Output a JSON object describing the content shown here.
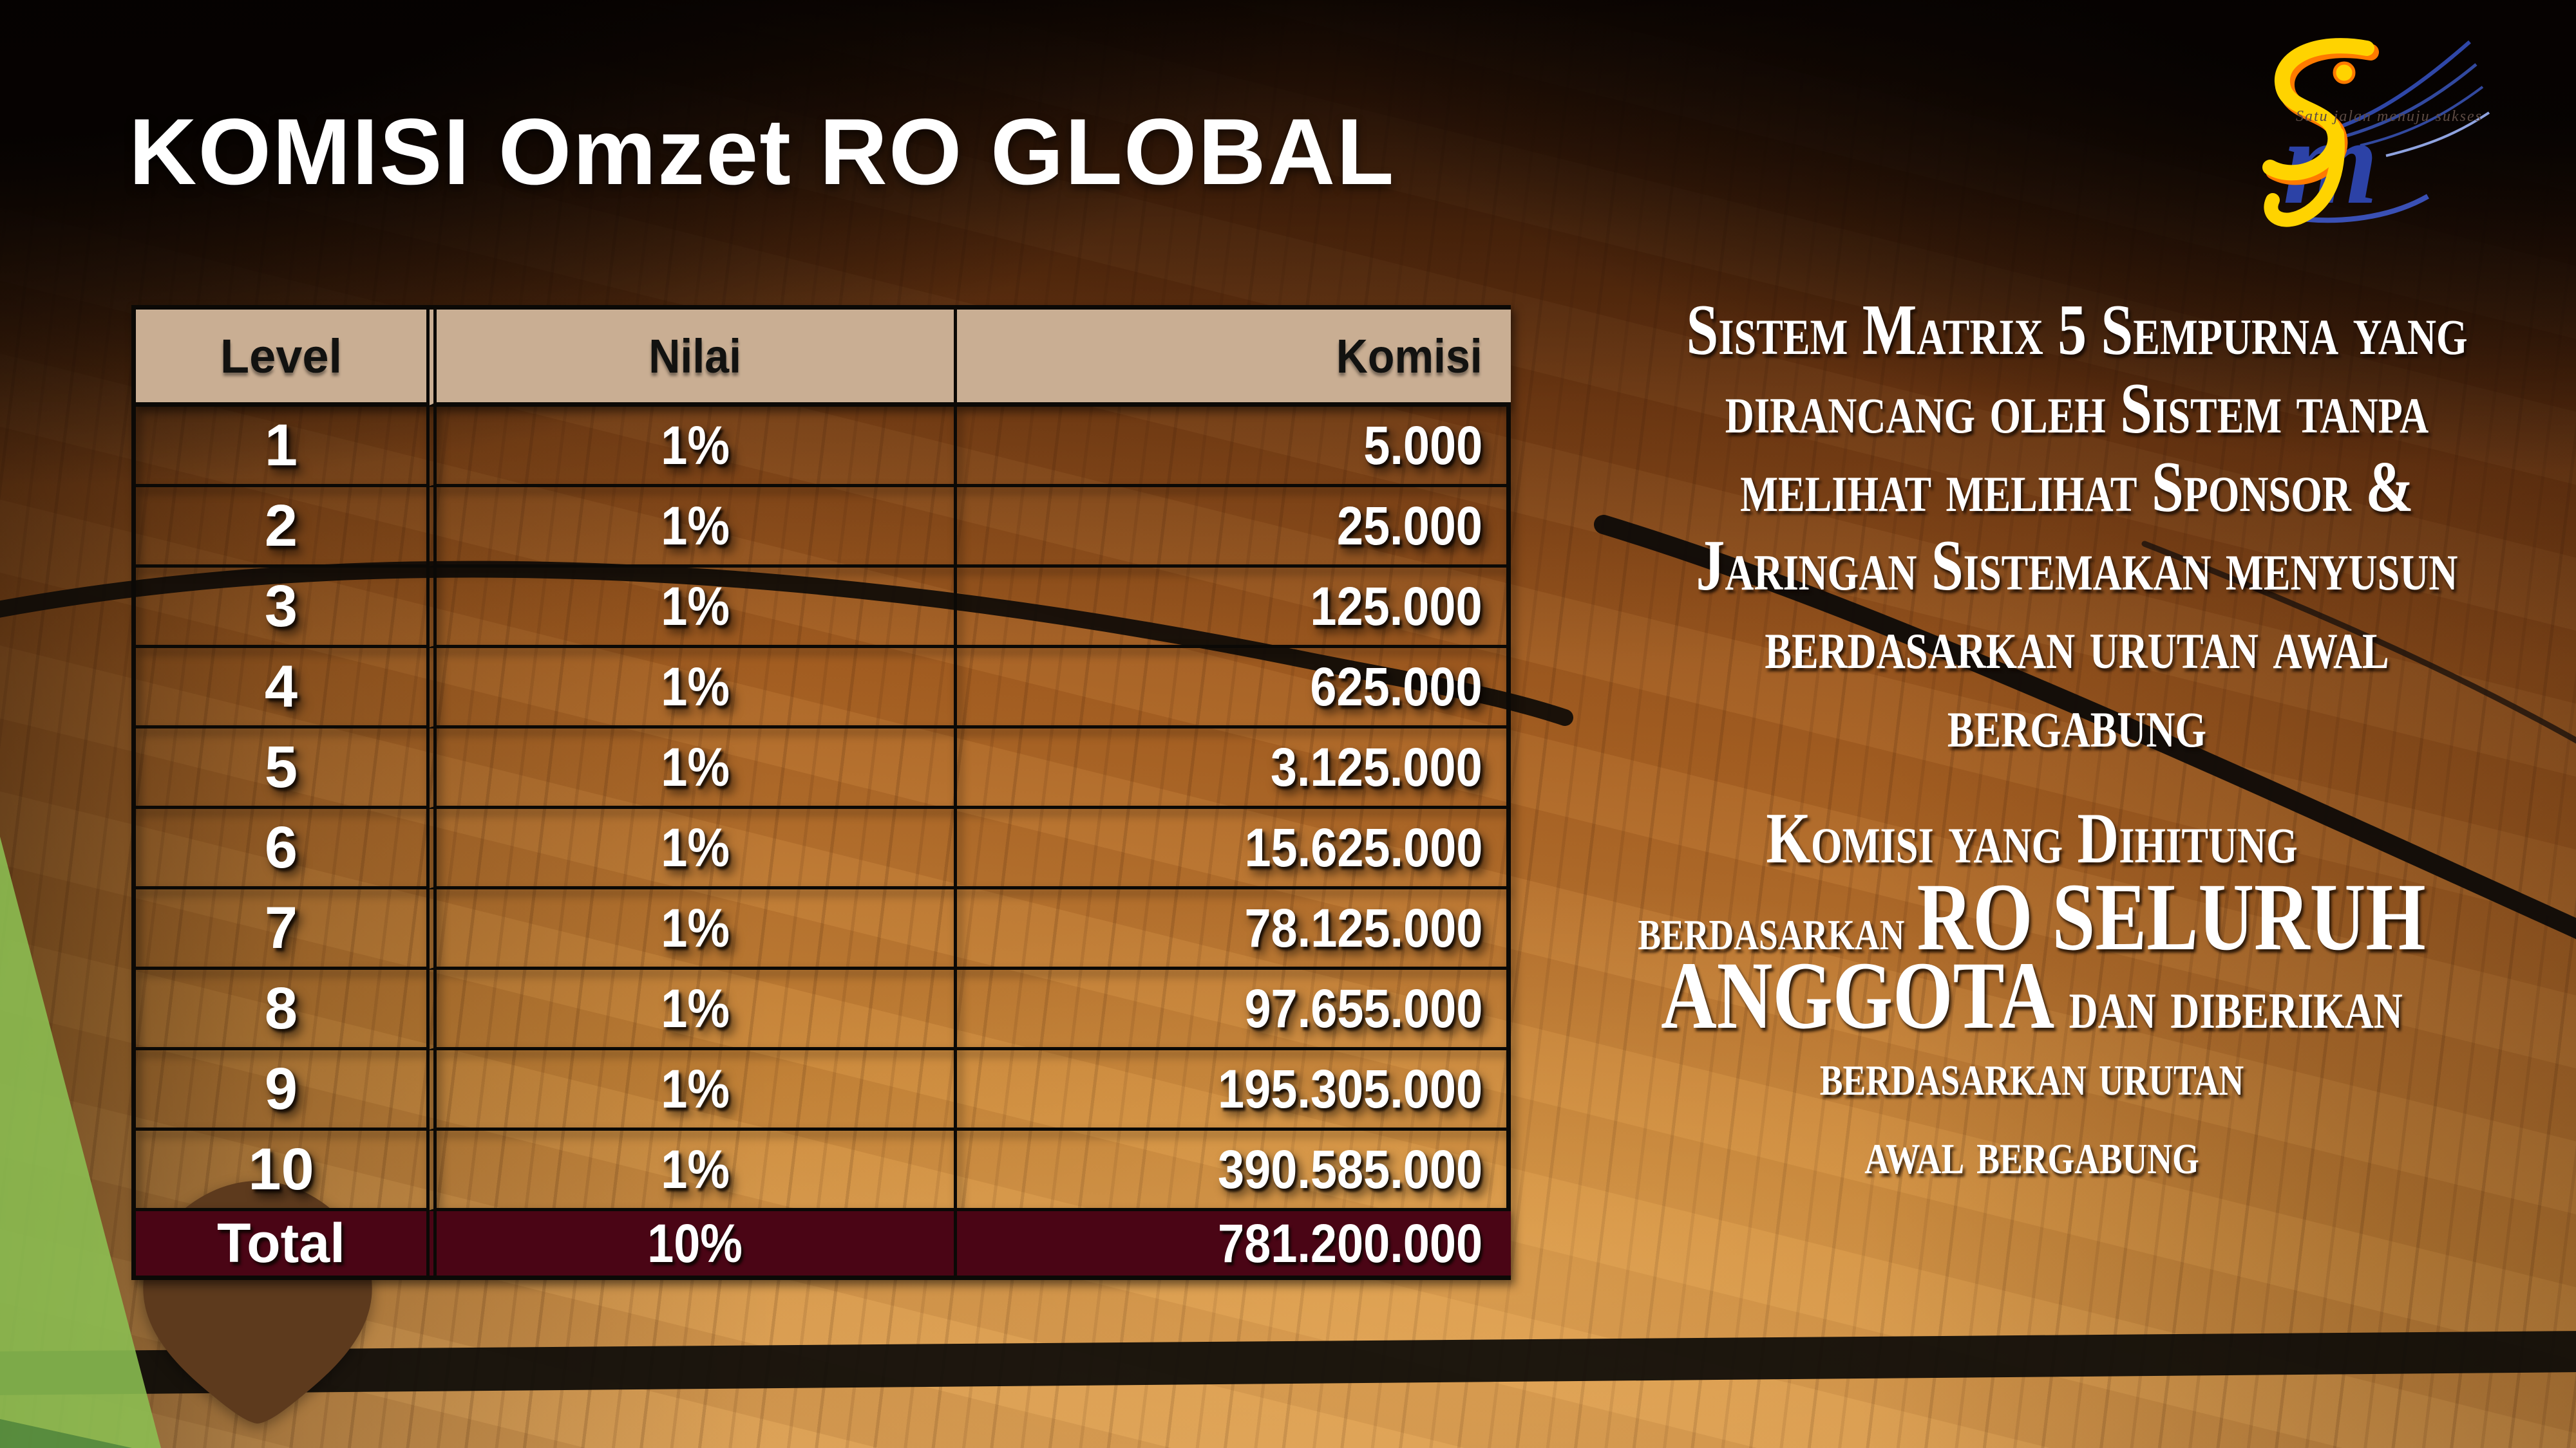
{
  "slide": {
    "title": "KOMISI Omzet RO GLOBAL"
  },
  "logo": {
    "monogram_letters": "SJM",
    "tagline": "Satu jalan menuju sukses"
  },
  "table": {
    "headers": [
      "Level",
      "Nilai",
      "Komisi"
    ],
    "rows": [
      [
        "1",
        "1%",
        "5.000"
      ],
      [
        "2",
        "1%",
        "25.000"
      ],
      [
        "3",
        "1%",
        "125.000"
      ],
      [
        "4",
        "1%",
        "625.000"
      ],
      [
        "5",
        "1%",
        "3.125.000"
      ],
      [
        "6",
        "1%",
        "15.625.000"
      ],
      [
        "7",
        "1%",
        "78.125.000"
      ],
      [
        "8",
        "1%",
        "97.655.000"
      ],
      [
        "9",
        "1%",
        "195.305.000"
      ],
      [
        "10",
        "1%",
        "390.585.000"
      ]
    ],
    "total_row": [
      "Total",
      "10%",
      "781.200.000"
    ]
  },
  "panels": {
    "matrix_note": {
      "lines": [
        "Sistem Matrix 5 Sempurna yang",
        "dirancang oleh Sistem tanpa",
        "melihat melihat Sponsor &",
        "Jaringan Sistemakan menyusun",
        "berdasarkan urutan awal",
        "bergabung"
      ]
    },
    "komisi_note": {
      "lines": [
        [
          {
            "t": "Komisi yang Dihitung",
            "s": "md"
          }
        ],
        [
          {
            "t": "berdasarkan ",
            "s": "sm"
          },
          {
            "t": "RO SELURUH",
            "s": "lg"
          }
        ],
        [
          {
            "t": "ANGGOTA",
            "s": "lg"
          },
          {
            "t": " dan diberikan",
            "s": "md"
          }
        ],
        [
          {
            "t": "berdasarkan urutan",
            "s": "sm"
          }
        ],
        [
          {
            "t": "awal bergabung",
            "s": "sm"
          }
        ]
      ]
    }
  },
  "colors": {
    "header_bg": "#c9ae93",
    "total_bg": "#4a0515",
    "table_line": "#0b0906",
    "text_white": "#ffffff",
    "green_wedge": "#8cbf52",
    "brown_arrow": "#5d3a1d",
    "court_line": "#0e0b08",
    "logo_yellow": "#ffd300",
    "logo_orange": "#ff7a00",
    "logo_blue": "#2f47a8"
  }
}
